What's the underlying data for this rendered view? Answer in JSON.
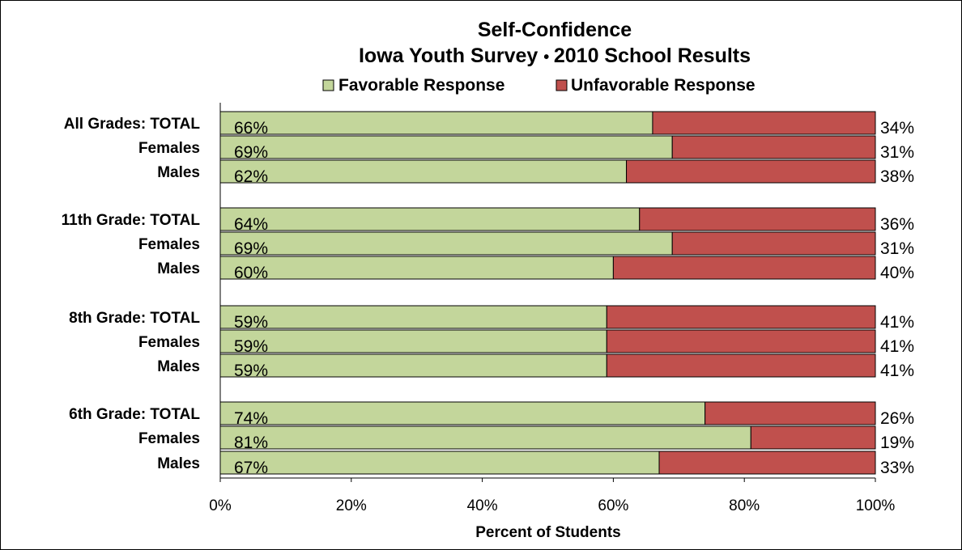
{
  "chart_data": {
    "type": "bar",
    "orientation": "horizontal",
    "stacked": true,
    "title": "Self-Confidence",
    "subtitle_left": "Iowa Youth Survey",
    "subtitle_right": "2010 School Results",
    "xlabel": "Percent of Students",
    "xlim": [
      0,
      100
    ],
    "x_ticks": [
      "0%",
      "20%",
      "40%",
      "60%",
      "80%",
      "100%"
    ],
    "legend_position": "top",
    "categories": [
      "All Grades:  TOTAL",
      "Females",
      "Males",
      "11th Grade:  TOTAL",
      "Females",
      "Males",
      "8th Grade:  TOTAL",
      "Females",
      "Males",
      "6th Grade:  TOTAL",
      "Females",
      "Males"
    ],
    "series": [
      {
        "name": "Favorable Response",
        "color": "#c3d69b",
        "values": [
          66,
          69,
          62,
          64,
          69,
          60,
          59,
          59,
          59,
          74,
          81,
          67
        ],
        "labels": [
          "66%",
          "69%",
          "62%",
          "64%",
          "69%",
          "60%",
          "59%",
          "59%",
          "59%",
          "74%",
          "81%",
          "67%"
        ]
      },
      {
        "name": "Unfavorable Response",
        "color": "#c0504d",
        "values": [
          34,
          31,
          38,
          36,
          31,
          40,
          41,
          41,
          41,
          26,
          19,
          33
        ],
        "labels": [
          "34%",
          "31%",
          "38%",
          "36%",
          "31%",
          "40%",
          "41%",
          "41%",
          "41%",
          "26%",
          "19%",
          "33%"
        ]
      }
    ]
  }
}
